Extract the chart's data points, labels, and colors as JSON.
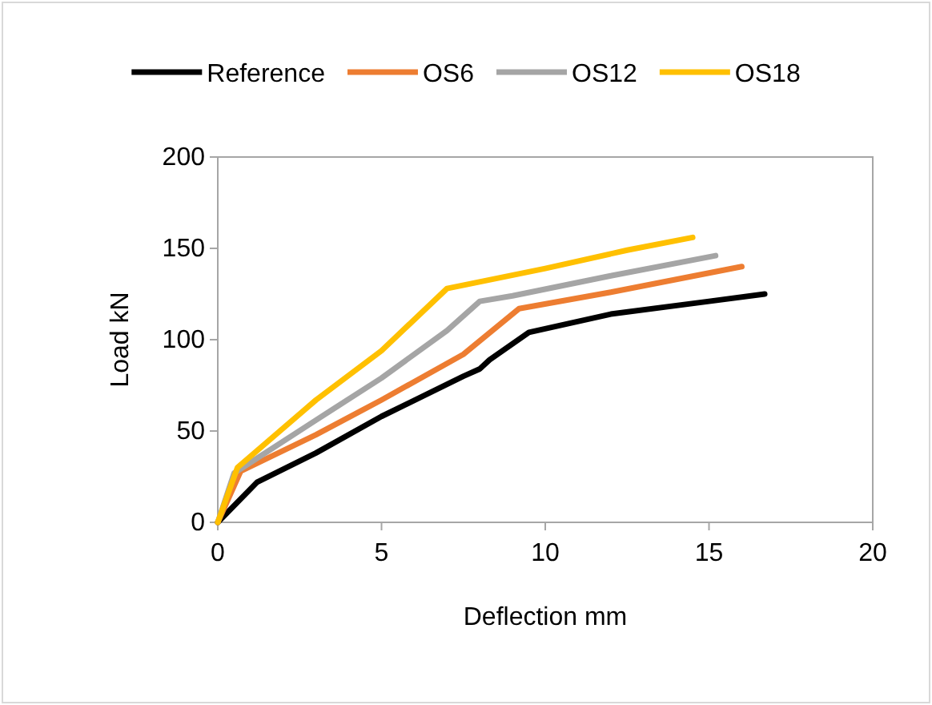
{
  "chart_data": {
    "type": "line",
    "xlabel": "Deflection mm",
    "ylabel": "Load kN",
    "xlim": [
      0,
      20
    ],
    "xticks": [
      0,
      5,
      10,
      15,
      20
    ],
    "ylim": [
      0,
      200
    ],
    "yticks": [
      0,
      50,
      100,
      150,
      200
    ],
    "grid": false,
    "legend": "top",
    "marker": "none",
    "line_style": "solid",
    "series": [
      {
        "name": "Reference",
        "color": "#000000",
        "x": [
          0,
          1.2,
          3,
          5,
          7.5,
          8,
          8.3,
          9.5,
          12,
          15,
          16.7
        ],
        "values": [
          0,
          22,
          38,
          58,
          80,
          84,
          89,
          104,
          114,
          121,
          125
        ]
      },
      {
        "name": "OS6",
        "color": "#ed7d31",
        "x": [
          0,
          0.7,
          3,
          5,
          7.5,
          9.2,
          12,
          16
        ],
        "values": [
          0,
          28,
          48,
          67,
          92,
          117,
          126,
          140
        ]
      },
      {
        "name": "OS12",
        "color": "#a5a5a5",
        "x": [
          0,
          0.5,
          3,
          5,
          7,
          8,
          9,
          12,
          15.2
        ],
        "values": [
          0,
          27,
          56,
          79,
          105,
          121,
          124,
          135,
          146
        ]
      },
      {
        "name": "OS18",
        "color": "#ffc000",
        "x": [
          0,
          0.6,
          3,
          5,
          7,
          10,
          12.5,
          14.5
        ],
        "values": [
          0,
          30,
          67,
          94,
          128,
          139,
          149,
          156
        ]
      }
    ]
  }
}
